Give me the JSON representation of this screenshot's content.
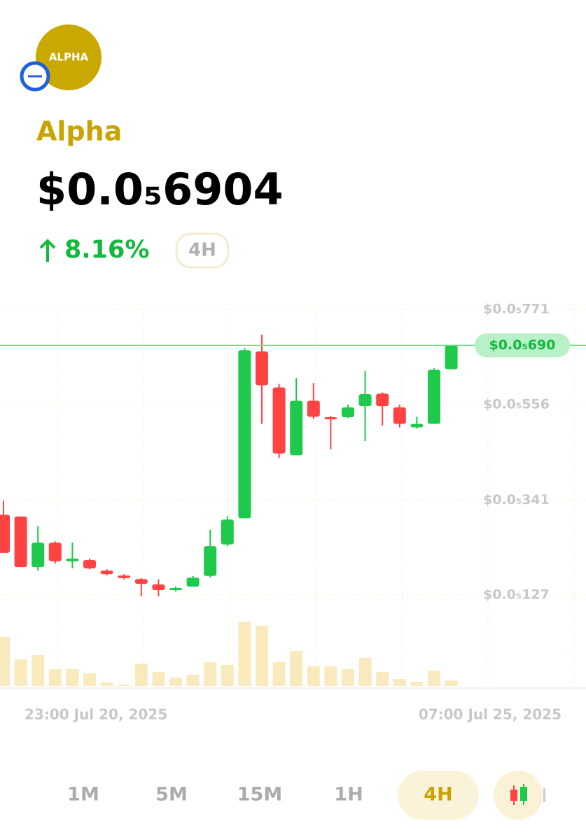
{
  "header": {
    "logo": "ALPHA",
    "name": "Alpha",
    "price": "$0.0₅6904",
    "change": "8.16%",
    "change_period": "4H"
  },
  "chart_data": {
    "type": "candlestick",
    "open": [
      3.08e-06,
      3.04e-06,
      1.9e-06,
      2.45e-06,
      2.03e-06,
      2.06e-06,
      1.82e-06,
      1.71e-06,
      1.63e-06,
      1.51e-06,
      1.38e-06,
      1.46e-06,
      1.7e-06,
      2.41e-06,
      3e-06,
      6.76e-06,
      5.95e-06,
      4.42e-06,
      5.65e-06,
      5.28e-06,
      5.28e-06,
      5.53e-06,
      5.81e-06,
      5.5e-06,
      5.05e-06,
      5.13e-06,
      6.36e-06
    ],
    "high": [
      3.4e-06,
      3.04e-06,
      2.82e-06,
      2.48e-06,
      2.45e-06,
      2.09e-06,
      1.85e-06,
      1.74e-06,
      1.65e-06,
      1.62e-06,
      1.46e-06,
      1.7e-06,
      2.74e-06,
      3.05e-06,
      6.84e-06,
      7.14e-06,
      6.03e-06,
      6.16e-06,
      6.05e-06,
      5.31e-06,
      5.56e-06,
      6.32e-06,
      5.84e-06,
      5.56e-06,
      5.29e-06,
      6.38e-06,
      6.9e-06
    ],
    "low": [
      2.22e-06,
      1.9e-06,
      1.82e-06,
      1.98e-06,
      1.87e-06,
      1.85e-06,
      1.71e-06,
      1.62e-06,
      1.24e-06,
      1.24e-06,
      1.35e-06,
      1.46e-06,
      1.66e-06,
      2.37e-06,
      3e-06,
      5.13e-06,
      4.36e-06,
      4.42e-06,
      5.24e-06,
      4.55e-06,
      5.26e-06,
      4.74e-06,
      5.09e-06,
      5.05e-06,
      5.02e-06,
      5.13e-06,
      6.36e-06
    ],
    "close": [
      2.22e-06,
      1.9e-06,
      2.45e-06,
      2.03e-06,
      2.09e-06,
      1.87e-06,
      1.74e-06,
      1.65e-06,
      1.52e-06,
      1.38e-06,
      1.43e-06,
      1.66e-06,
      2.37e-06,
      2.97e-06,
      6.79e-06,
      6e-06,
      4.46e-06,
      5.65e-06,
      5.29e-06,
      5.26e-06,
      5.5e-06,
      5.8e-06,
      5.53e-06,
      5.13e-06,
      5.13e-06,
      6.35e-06,
      6.9e-06
    ],
    "volume": [
      70,
      38,
      44,
      24,
      24,
      18,
      5,
      2,
      32,
      20,
      12,
      16,
      34,
      30,
      92,
      86,
      34,
      50,
      28,
      28,
      24,
      40,
      20,
      10,
      6,
      22,
      8
    ],
    "up_color": "#1ec94c",
    "down_color": "#ff4242",
    "volume_color": "#f5e3a6",
    "ylim": [
      1.27e-06,
      7.71e-06
    ],
    "yticks": [
      {
        "value": 1.27e-06,
        "label": "$0.0₅127"
      },
      {
        "value": 3.41e-06,
        "label": "$0.0₅341"
      },
      {
        "value": 5.56e-06,
        "label": "$0.0₅556"
      },
      {
        "value": 7.71e-06,
        "label": "$0.0₅771"
      }
    ],
    "grid": true,
    "x_labels": [
      "23:00 Jul 20, 2025",
      "07:00 Jul 25, 2025"
    ],
    "current_price": {
      "value": 6.9e-06,
      "label": "$0.0₅690"
    }
  },
  "timeframes": [
    "1M",
    "5M",
    "15M",
    "1H",
    "4H"
  ],
  "selected_timeframe": 4
}
